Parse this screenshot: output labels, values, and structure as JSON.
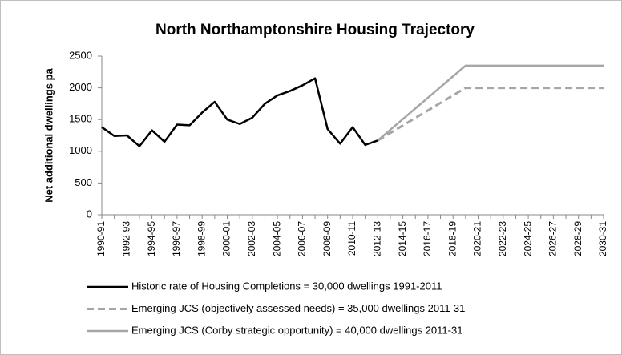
{
  "chart_data": {
    "type": "line",
    "title": "North Northamptonshire  Housing Trajectory",
    "y_label": "Net additional dwellings pa",
    "categories": [
      "1990-91",
      null,
      "1992-93",
      null,
      "1994-95",
      null,
      "1996-97",
      null,
      "1998-99",
      null,
      "2000-01",
      null,
      "2002-03",
      null,
      "2004-05",
      null,
      "2006-07",
      null,
      "2008-09",
      null,
      "2010-11",
      null,
      "2012-13",
      null,
      "2014-15",
      null,
      "2016-17",
      null,
      "2018-19",
      null,
      "2020-21",
      null,
      "2022-23",
      null,
      "2024-25",
      null,
      "2026-27",
      null,
      "2028-29",
      null,
      "2030-31"
    ],
    "series": [
      {
        "name": "Historic rate of Housing Completions = 30,000 dwellings 1991-2011",
        "color": "#000000",
        "dash": false,
        "values": [
          1380,
          1240,
          1250,
          1080,
          1330,
          1150,
          1420,
          1410,
          1610,
          1780,
          1500,
          1430,
          1530,
          1750,
          1880,
          1950,
          2040,
          2150,
          1350,
          1120,
          1380,
          1100,
          1170,
          null,
          null,
          null,
          null,
          null,
          null,
          null,
          null,
          null,
          null,
          null,
          null,
          null,
          null,
          null,
          null,
          null,
          null
        ]
      },
      {
        "name": "Emerging JCS (objectively assessed needs) = 35,000 dwellings 2011-31",
        "color": "#a6a6a6",
        "dash": true,
        "values": [
          null,
          null,
          null,
          null,
          null,
          null,
          null,
          null,
          null,
          null,
          null,
          null,
          null,
          null,
          null,
          null,
          null,
          null,
          null,
          null,
          null,
          null,
          1170,
          1289,
          1407,
          1526,
          1644,
          1763,
          1881,
          2000,
          2000,
          2000,
          2000,
          2000,
          2000,
          2000,
          2000,
          2000,
          2000,
          2000,
          2000
        ]
      },
      {
        "name": "Emerging JCS (Corby strategic opportunity) = 40,000 dwellings 2011-31",
        "color": "#a6a6a6",
        "dash": false,
        "values": [
          null,
          null,
          null,
          null,
          null,
          null,
          null,
          null,
          null,
          null,
          null,
          null,
          null,
          null,
          null,
          null,
          null,
          null,
          null,
          null,
          null,
          null,
          1170,
          1339,
          1507,
          1676,
          1844,
          2013,
          2181,
          2350,
          2350,
          2350,
          2350,
          2350,
          2350,
          2350,
          2350,
          2350,
          2350,
          2350,
          2350
        ]
      }
    ],
    "ylim": [
      0,
      2500
    ],
    "yticks": [
      0,
      500,
      1000,
      1500,
      2000,
      2500
    ],
    "grid": false,
    "legend": "bottom"
  }
}
